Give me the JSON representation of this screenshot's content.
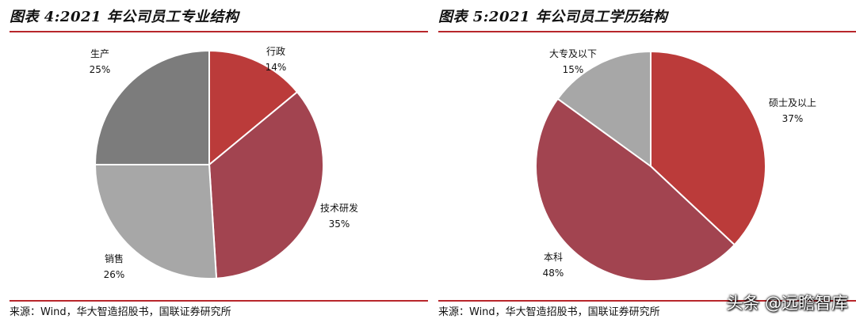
{
  "chart_data": [
    {
      "type": "pie",
      "title": "图表 4:2021 年公司员工专业结构",
      "source": "来源：Wind，华大智造招股书，国联证券研究所",
      "categories": [
        "行政",
        "技术研发",
        "销售",
        "生产"
      ],
      "values": [
        14,
        35,
        26,
        25
      ],
      "labels": [
        "14%",
        "35%",
        "26%",
        "25%"
      ],
      "colors": [
        "#bb3b3a",
        "#a24450",
        "#a7a7a7",
        "#7c7c7c"
      ]
    },
    {
      "type": "pie",
      "title": "图表 5:2021 年公司员工学历结构",
      "source": "来源：Wind，华大智造招股书，国联证券研究所",
      "categories": [
        "硕士及以上",
        "本科",
        "大专及以下"
      ],
      "values": [
        37,
        48,
        15
      ],
      "labels": [
        "37%",
        "48%",
        "15%"
      ],
      "colors": [
        "#bb3b3a",
        "#a24450",
        "#a7a7a7"
      ]
    }
  ],
  "watermark": "头条 @远瞻智库"
}
